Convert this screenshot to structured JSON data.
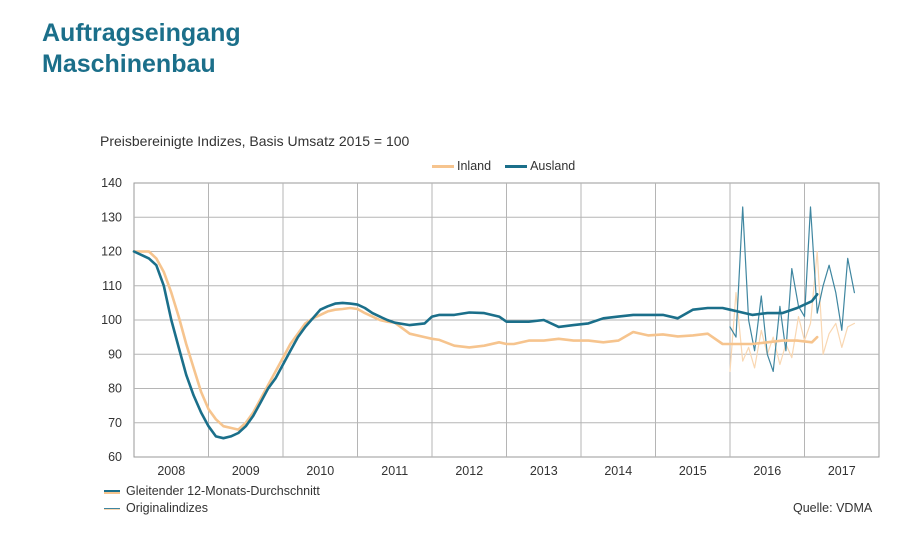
{
  "header": {
    "title_line1": "Auftragseingang",
    "title_line2": "Maschinenbau"
  },
  "subtitle": "Preisbereinigte Indizes, Basis Umsatz 2015 = 100",
  "source": "Quelle: VDMA",
  "footnotes": {
    "smoothed": "Gleitender 12-Monats-Durchschnitt",
    "original": "Originalindizes"
  },
  "colors": {
    "inland": "#f6c48e",
    "ausland": "#1b6f8a",
    "inland_orig": "#f9d7b2",
    "ausland_orig": "#3f86a0"
  },
  "chart_data": {
    "type": "line",
    "ylim": [
      60,
      140
    ],
    "yticks": [
      60,
      70,
      80,
      90,
      100,
      110,
      120,
      130,
      140
    ],
    "x_range": [
      2007.5,
      2017.5
    ],
    "categories": [
      "2008",
      "2009",
      "2010",
      "2011",
      "2012",
      "2013",
      "2014",
      "2015",
      "2016",
      "2017"
    ],
    "legend": [
      "Inland",
      "Ausland"
    ],
    "legend_position": "top-center",
    "grid": true,
    "series": [
      {
        "name": "Inland",
        "kind": "smoothed",
        "color": "#f6c48e",
        "x": [
          2007.5,
          2007.7,
          2007.8,
          2007.9,
          2008.0,
          2008.1,
          2008.2,
          2008.3,
          2008.4,
          2008.5,
          2008.6,
          2008.7,
          2008.8,
          2008.9,
          2009.0,
          2009.1,
          2009.2,
          2009.3,
          2009.4,
          2009.5,
          2009.6,
          2009.7,
          2009.8,
          2009.9,
          2010.0,
          2010.1,
          2010.2,
          2010.3,
          2010.4,
          2010.5,
          2010.6,
          2010.7,
          2010.8,
          2010.9,
          2011.0,
          2011.2,
          2011.4,
          2011.5,
          2011.6,
          2011.8,
          2012.0,
          2012.2,
          2012.4,
          2012.5,
          2012.6,
          2012.8,
          2013.0,
          2013.2,
          2013.4,
          2013.6,
          2013.8,
          2014.0,
          2014.2,
          2014.4,
          2014.6,
          2014.8,
          2015.0,
          2015.2,
          2015.4,
          2015.5,
          2015.6,
          2015.8,
          2016.0,
          2016.2,
          2016.4,
          2016.6,
          2016.67
        ],
        "values": [
          120,
          120,
          118,
          114,
          108,
          101,
          93,
          86,
          79,
          74,
          71,
          69,
          68.5,
          68,
          70,
          73,
          77,
          81,
          85,
          89,
          93,
          96,
          99,
          100.5,
          101.5,
          102.5,
          103,
          103.2,
          103.5,
          103.2,
          102,
          101,
          100,
          99.5,
          99.2,
          96,
          95,
          94.5,
          94.2,
          92.5,
          92,
          92.5,
          93.5,
          93,
          93,
          94,
          94,
          94.5,
          94,
          94,
          93.5,
          94,
          96.5,
          95.5,
          95.8,
          95.2,
          95.5,
          96,
          93,
          93,
          93,
          93,
          93.5,
          94,
          94,
          93.5,
          95
        ]
      },
      {
        "name": "Ausland",
        "kind": "smoothed",
        "color": "#1b6f8a",
        "x": [
          2007.5,
          2007.7,
          2007.8,
          2007.9,
          2008.0,
          2008.1,
          2008.2,
          2008.3,
          2008.4,
          2008.5,
          2008.6,
          2008.7,
          2008.8,
          2008.9,
          2009.0,
          2009.1,
          2009.2,
          2009.3,
          2009.4,
          2009.5,
          2009.6,
          2009.7,
          2009.8,
          2009.9,
          2010.0,
          2010.1,
          2010.2,
          2010.3,
          2010.4,
          2010.5,
          2010.6,
          2010.7,
          2010.8,
          2010.9,
          2011.0,
          2011.2,
          2011.4,
          2011.5,
          2011.6,
          2011.8,
          2012.0,
          2012.2,
          2012.4,
          2012.5,
          2012.6,
          2012.8,
          2013.0,
          2013.2,
          2013.4,
          2013.6,
          2013.8,
          2014.0,
          2014.2,
          2014.4,
          2014.6,
          2014.8,
          2015.0,
          2015.2,
          2015.4,
          2015.5,
          2015.6,
          2015.8,
          2016.0,
          2016.2,
          2016.4,
          2016.6,
          2016.67
        ],
        "values": [
          120,
          118,
          116,
          110,
          100,
          92,
          84,
          78,
          73,
          69,
          66,
          65.5,
          66,
          67,
          69,
          72,
          76,
          80,
          83,
          87,
          91,
          95,
          98,
          100.5,
          103,
          104,
          104.8,
          105,
          104.8,
          104.5,
          103.5,
          102,
          101,
          100,
          99.2,
          98.5,
          99,
          101,
          101.5,
          101.5,
          102.2,
          102,
          101,
          99.5,
          99.5,
          99.5,
          100,
          98,
          98.5,
          99,
          100.5,
          101,
          101.5,
          101.5,
          101.5,
          100.5,
          103,
          103.5,
          103.5,
          103,
          102.5,
          101.5,
          102,
          102,
          103.5,
          105.5,
          107.5
        ]
      },
      {
        "name": "Inland",
        "kind": "original",
        "color": "#f9d7b2",
        "x": [
          2015.5,
          2015.58,
          2015.67,
          2015.75,
          2015.83,
          2015.92,
          2016.0,
          2016.08,
          2016.17,
          2016.25,
          2016.33,
          2016.42,
          2016.5,
          2016.58,
          2016.67,
          2016.75,
          2016.83,
          2016.92,
          2017.0,
          2017.08,
          2017.17
        ],
        "values": [
          85,
          108,
          88,
          92,
          86,
          97,
          90,
          95,
          87,
          93,
          89,
          101,
          94,
          99,
          120,
          90,
          96,
          99,
          92,
          98,
          99
        ]
      },
      {
        "name": "Ausland",
        "kind": "original",
        "color": "#3f86a0",
        "x": [
          2015.5,
          2015.58,
          2015.67,
          2015.75,
          2015.83,
          2015.92,
          2016.0,
          2016.08,
          2016.17,
          2016.25,
          2016.33,
          2016.42,
          2016.5,
          2016.58,
          2016.67,
          2016.75,
          2016.83,
          2016.92,
          2017.0,
          2017.08,
          2017.17
        ],
        "values": [
          98,
          95,
          133,
          100,
          91,
          107,
          90,
          85,
          104,
          91,
          115,
          104,
          101,
          133,
          102,
          110,
          116,
          108,
          97,
          118,
          108
        ]
      }
    ]
  }
}
